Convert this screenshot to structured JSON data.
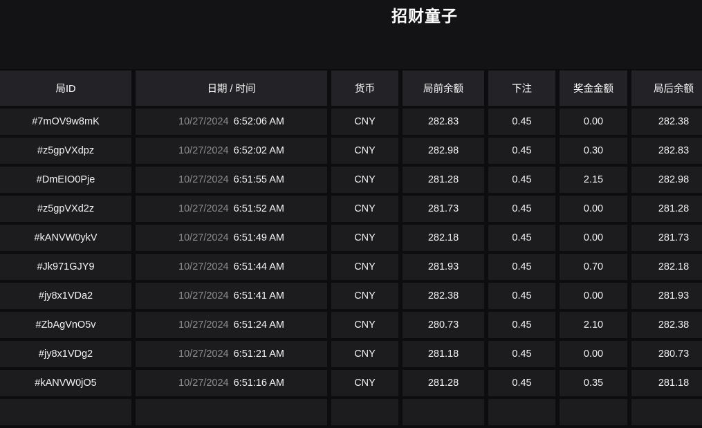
{
  "page": {
    "title": "招财童子"
  },
  "table": {
    "columns": [
      {
        "key": "round_id",
        "label": "局ID"
      },
      {
        "key": "datetime",
        "label": "日期 / 时间"
      },
      {
        "key": "currency",
        "label": "货币"
      },
      {
        "key": "balance_before",
        "label": "局前余额"
      },
      {
        "key": "bet",
        "label": "下注"
      },
      {
        "key": "win",
        "label": "奖金金额"
      },
      {
        "key": "balance_after",
        "label": "局后余额"
      }
    ],
    "rows": [
      {
        "round_id": "#7mOV9w8mK",
        "date": "10/27/2024",
        "time": "6:52:06 AM",
        "currency": "CNY",
        "balance_before": "282.83",
        "bet": "0.45",
        "win": "0.00",
        "balance_after": "282.38"
      },
      {
        "round_id": "#z5gpVXdpz",
        "date": "10/27/2024",
        "time": "6:52:02 AM",
        "currency": "CNY",
        "balance_before": "282.98",
        "bet": "0.45",
        "win": "0.30",
        "balance_after": "282.83"
      },
      {
        "round_id": "#DmEIO0Pje",
        "date": "10/27/2024",
        "time": "6:51:55 AM",
        "currency": "CNY",
        "balance_before": "281.28",
        "bet": "0.45",
        "win": "2.15",
        "balance_after": "282.98"
      },
      {
        "round_id": "#z5gpVXd2z",
        "date": "10/27/2024",
        "time": "6:51:52 AM",
        "currency": "CNY",
        "balance_before": "281.73",
        "bet": "0.45",
        "win": "0.00",
        "balance_after": "281.28"
      },
      {
        "round_id": "#kANVW0ykV",
        "date": "10/27/2024",
        "time": "6:51:49 AM",
        "currency": "CNY",
        "balance_before": "282.18",
        "bet": "0.45",
        "win": "0.00",
        "balance_after": "281.73"
      },
      {
        "round_id": "#Jk971GJY9",
        "date": "10/27/2024",
        "time": "6:51:44 AM",
        "currency": "CNY",
        "balance_before": "281.93",
        "bet": "0.45",
        "win": "0.70",
        "balance_after": "282.18"
      },
      {
        "round_id": "#jy8x1VDa2",
        "date": "10/27/2024",
        "time": "6:51:41 AM",
        "currency": "CNY",
        "balance_before": "282.38",
        "bet": "0.45",
        "win": "0.00",
        "balance_after": "281.93"
      },
      {
        "round_id": "#ZbAgVnO5v",
        "date": "10/27/2024",
        "time": "6:51:24 AM",
        "currency": "CNY",
        "balance_before": "280.73",
        "bet": "0.45",
        "win": "2.10",
        "balance_after": "282.38"
      },
      {
        "round_id": "#jy8x1VDg2",
        "date": "10/27/2024",
        "time": "6:51:21 AM",
        "currency": "CNY",
        "balance_before": "281.18",
        "bet": "0.45",
        "win": "0.00",
        "balance_after": "280.73"
      },
      {
        "round_id": "#kANVW0jO5",
        "date": "10/27/2024",
        "time": "6:51:16 AM",
        "currency": "CNY",
        "balance_before": "281.28",
        "bet": "0.45",
        "win": "0.35",
        "balance_after": "281.18"
      }
    ]
  }
}
